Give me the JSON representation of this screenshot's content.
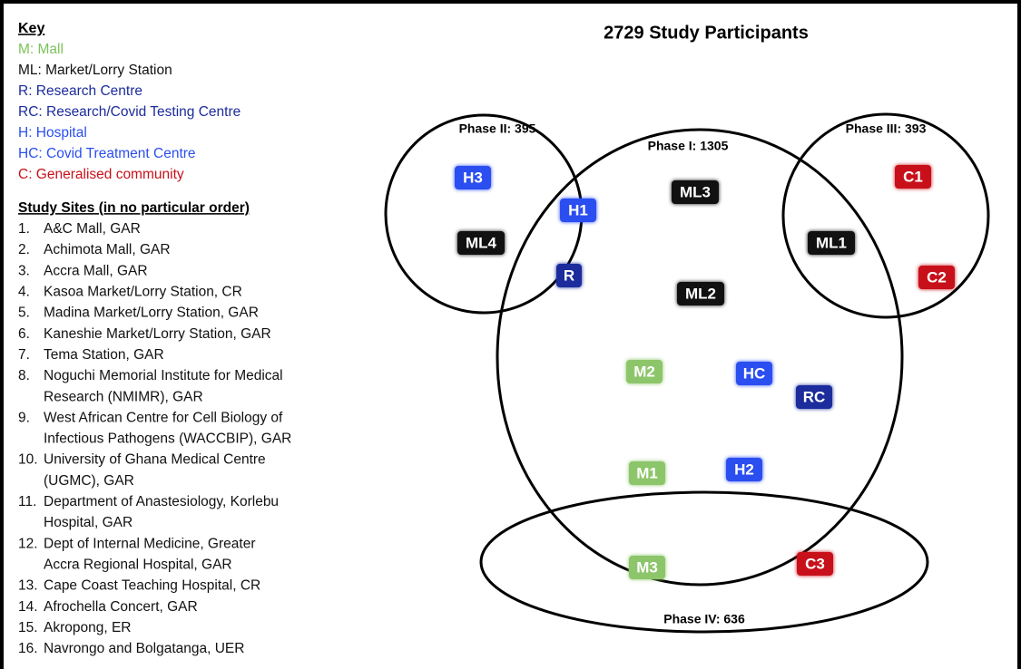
{
  "key": {
    "title": "Key",
    "items": [
      {
        "text": "M: Mall",
        "color": "#7cc35a"
      },
      {
        "text": "ML: Market/Lorry Station",
        "color": "#111111"
      },
      {
        "text": "R: Research Centre",
        "color": "#1c2c9c"
      },
      {
        "text": "RC: Research/Covid Testing Centre",
        "color": "#1c2c9c"
      },
      {
        "text": "H: Hospital",
        "color": "#2b4ef0"
      },
      {
        "text": "HC: Covid Treatment Centre",
        "color": "#2b4ef0"
      },
      {
        "text": "C: Generalised community",
        "color": "#c8101a"
      }
    ]
  },
  "sites": {
    "title": "Study Sites (in no particular order)",
    "items": [
      {
        "number": "1.",
        "lines": [
          "A&C Mall, GAR"
        ]
      },
      {
        "number": "2.",
        "lines": [
          "Achimota Mall, GAR"
        ]
      },
      {
        "number": "3.",
        "lines": [
          "Accra Mall, GAR"
        ]
      },
      {
        "number": "4.",
        "lines": [
          "Kasoa Market/Lorry Station, CR"
        ]
      },
      {
        "number": "5.",
        "lines": [
          "Madina Market/Lorry Station, GAR"
        ]
      },
      {
        "number": "6.",
        "lines": [
          "Kaneshie Market/Lorry Station, GAR"
        ]
      },
      {
        "number": "7.",
        "lines": [
          "Tema Station, GAR"
        ]
      },
      {
        "number": "8.",
        "lines": [
          "Noguchi Memorial Institute for Medical",
          "Research (NMIMR), GAR"
        ]
      },
      {
        "number": "9.",
        "lines": [
          "West African Centre for Cell Biology of",
          "Infectious Pathogens (WACCBIP), GAR"
        ]
      },
      {
        "number": "10.",
        "lines": [
          "University of Ghana Medical Centre",
          "(UGMC), GAR"
        ]
      },
      {
        "number": "11.",
        "lines": [
          "Department of Anastesiology, Korlebu",
          "Hospital, GAR"
        ]
      },
      {
        "number": "12.",
        "lines": [
          "Dept of Internal Medicine, Greater",
          "Accra Regional Hospital, GAR"
        ]
      },
      {
        "number": "13.",
        "lines": [
          "Cape Coast Teaching Hospital, CR"
        ]
      },
      {
        "number": "14.",
        "lines": [
          "Afrochella Concert, GAR"
        ]
      },
      {
        "number": "15.",
        "lines": [
          "Akropong, ER"
        ]
      },
      {
        "number": "16.",
        "lines": [
          "Navrongo and Bolgatanga, UER"
        ]
      }
    ]
  },
  "diagram": {
    "title": "2729 Study Participants",
    "phases": [
      "Phase II: 395",
      "Phase I: 1305",
      "Phase III: 393",
      "Phase IV: 636"
    ],
    "nodes": [
      {
        "label": "H3",
        "color": "#2b4ef0"
      },
      {
        "label": "H1",
        "color": "#2b4ef0"
      },
      {
        "label": "ML4",
        "color": "#111111"
      },
      {
        "label": "R",
        "color": "#1c2c9c"
      },
      {
        "label": "ML3",
        "color": "#111111"
      },
      {
        "label": "ML2",
        "color": "#111111"
      },
      {
        "label": "ML1",
        "color": "#111111"
      },
      {
        "label": "C1",
        "color": "#c8101a"
      },
      {
        "label": "C2",
        "color": "#c8101a"
      },
      {
        "label": "M2",
        "color": "#8dc56a"
      },
      {
        "label": "HC",
        "color": "#2b4ef0"
      },
      {
        "label": "RC",
        "color": "#1c2c9c"
      },
      {
        "label": "M1",
        "color": "#8dc56a"
      },
      {
        "label": "H2",
        "color": "#2b4ef0"
      },
      {
        "label": "M3",
        "color": "#8dc56a"
      },
      {
        "label": "C3",
        "color": "#c8101a"
      }
    ]
  }
}
